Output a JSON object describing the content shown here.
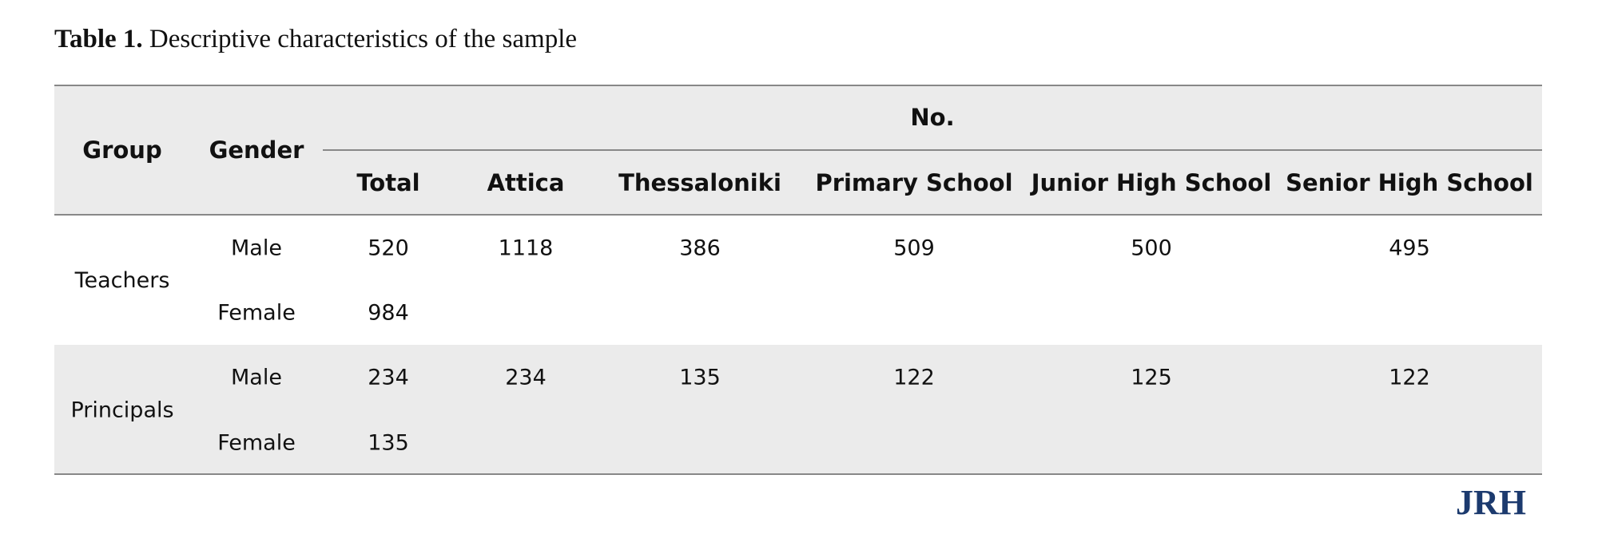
{
  "table": {
    "caption_label": "Table 1.",
    "caption": "Descriptive characteristics of the sample",
    "header": {
      "group": "Group",
      "gender": "Gender",
      "span": "No.",
      "columns": [
        "Total",
        "Attica",
        "Thessaloniki",
        "Primary School",
        "Junior High School",
        "Senior High School"
      ]
    },
    "groups": [
      {
        "name": "Teachers",
        "rows": [
          {
            "gender": "Male",
            "cells": [
              520,
              1118,
              386,
              509,
              500,
              495
            ]
          },
          {
            "gender": "Female",
            "cells": [
              984
            ]
          }
        ]
      },
      {
        "name": "Principals",
        "rows": [
          {
            "gender": "Male",
            "cells": [
              234,
              234,
              135,
              122,
              125,
              122
            ]
          },
          {
            "gender": "Female",
            "cells": [
              135
            ]
          }
        ]
      }
    ]
  },
  "logo": "JRH"
}
